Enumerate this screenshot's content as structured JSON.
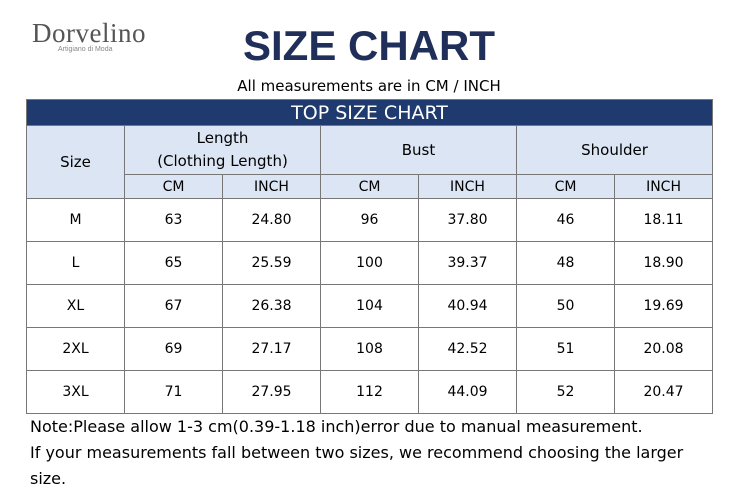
{
  "logo": {
    "name": "Dorvelino",
    "tagline": "Artigiano di Moda"
  },
  "header": {
    "title": "SIZE CHART",
    "subtitle": "All measurements are in CM / INCH"
  },
  "table": {
    "title": "TOP SIZE CHART",
    "size_header": "Size",
    "groups": [
      "Length\n(Clothing Length)",
      "Bust",
      "Shoulder"
    ],
    "units": [
      "CM",
      "INCH",
      "CM",
      "INCH",
      "CM",
      "INCH"
    ],
    "rows": [
      [
        "M",
        "63",
        "24.80",
        "96",
        "37.80",
        "46",
        "18.11"
      ],
      [
        "L",
        "65",
        "25.59",
        "100",
        "39.37",
        "48",
        "18.90"
      ],
      [
        "XL",
        "67",
        "26.38",
        "104",
        "40.94",
        "50",
        "19.69"
      ],
      [
        "2XL",
        "69",
        "27.17",
        "108",
        "42.52",
        "51",
        "20.08"
      ],
      [
        "3XL",
        "71",
        "27.95",
        "112",
        "44.09",
        "52",
        "20.47"
      ]
    ]
  },
  "notes": [
    "Note:Please allow 1-3 cm(0.39-1.18 inch)error due to manual measurement.",
    "If your measurements fall between two sizes, we recommend choosing the larger size."
  ]
}
